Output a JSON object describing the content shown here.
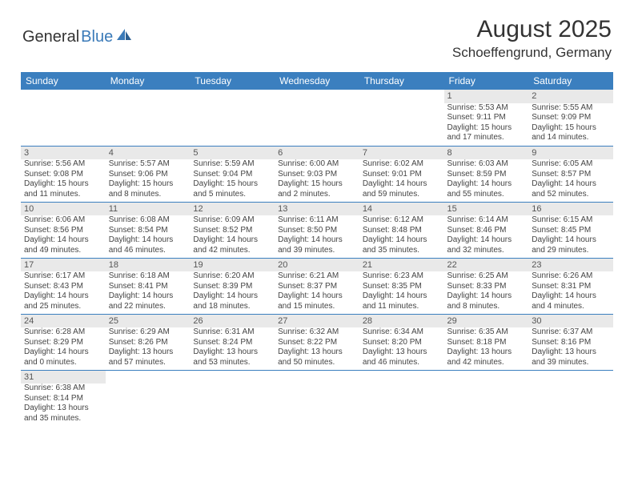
{
  "logo": {
    "part1": "General",
    "part2": "Blue"
  },
  "title": "August 2025",
  "location": "Schoeffengrund, Germany",
  "colors": {
    "header_bg": "#3b7fbf",
    "header_text": "#ffffff",
    "daynum_bg": "#e9e9e9",
    "row_border": "#3b7fbf",
    "logo_blue": "#3a7ab8"
  },
  "daysOfWeek": [
    "Sunday",
    "Monday",
    "Tuesday",
    "Wednesday",
    "Thursday",
    "Friday",
    "Saturday"
  ],
  "weeks": [
    [
      null,
      null,
      null,
      null,
      null,
      {
        "n": "1",
        "sr": "Sunrise: 5:53 AM",
        "ss": "Sunset: 9:11 PM",
        "dl": "Daylight: 15 hours and 17 minutes."
      },
      {
        "n": "2",
        "sr": "Sunrise: 5:55 AM",
        "ss": "Sunset: 9:09 PM",
        "dl": "Daylight: 15 hours and 14 minutes."
      }
    ],
    [
      {
        "n": "3",
        "sr": "Sunrise: 5:56 AM",
        "ss": "Sunset: 9:08 PM",
        "dl": "Daylight: 15 hours and 11 minutes."
      },
      {
        "n": "4",
        "sr": "Sunrise: 5:57 AM",
        "ss": "Sunset: 9:06 PM",
        "dl": "Daylight: 15 hours and 8 minutes."
      },
      {
        "n": "5",
        "sr": "Sunrise: 5:59 AM",
        "ss": "Sunset: 9:04 PM",
        "dl": "Daylight: 15 hours and 5 minutes."
      },
      {
        "n": "6",
        "sr": "Sunrise: 6:00 AM",
        "ss": "Sunset: 9:03 PM",
        "dl": "Daylight: 15 hours and 2 minutes."
      },
      {
        "n": "7",
        "sr": "Sunrise: 6:02 AM",
        "ss": "Sunset: 9:01 PM",
        "dl": "Daylight: 14 hours and 59 minutes."
      },
      {
        "n": "8",
        "sr": "Sunrise: 6:03 AM",
        "ss": "Sunset: 8:59 PM",
        "dl": "Daylight: 14 hours and 55 minutes."
      },
      {
        "n": "9",
        "sr": "Sunrise: 6:05 AM",
        "ss": "Sunset: 8:57 PM",
        "dl": "Daylight: 14 hours and 52 minutes."
      }
    ],
    [
      {
        "n": "10",
        "sr": "Sunrise: 6:06 AM",
        "ss": "Sunset: 8:56 PM",
        "dl": "Daylight: 14 hours and 49 minutes."
      },
      {
        "n": "11",
        "sr": "Sunrise: 6:08 AM",
        "ss": "Sunset: 8:54 PM",
        "dl": "Daylight: 14 hours and 46 minutes."
      },
      {
        "n": "12",
        "sr": "Sunrise: 6:09 AM",
        "ss": "Sunset: 8:52 PM",
        "dl": "Daylight: 14 hours and 42 minutes."
      },
      {
        "n": "13",
        "sr": "Sunrise: 6:11 AM",
        "ss": "Sunset: 8:50 PM",
        "dl": "Daylight: 14 hours and 39 minutes."
      },
      {
        "n": "14",
        "sr": "Sunrise: 6:12 AM",
        "ss": "Sunset: 8:48 PM",
        "dl": "Daylight: 14 hours and 35 minutes."
      },
      {
        "n": "15",
        "sr": "Sunrise: 6:14 AM",
        "ss": "Sunset: 8:46 PM",
        "dl": "Daylight: 14 hours and 32 minutes."
      },
      {
        "n": "16",
        "sr": "Sunrise: 6:15 AM",
        "ss": "Sunset: 8:45 PM",
        "dl": "Daylight: 14 hours and 29 minutes."
      }
    ],
    [
      {
        "n": "17",
        "sr": "Sunrise: 6:17 AM",
        "ss": "Sunset: 8:43 PM",
        "dl": "Daylight: 14 hours and 25 minutes."
      },
      {
        "n": "18",
        "sr": "Sunrise: 6:18 AM",
        "ss": "Sunset: 8:41 PM",
        "dl": "Daylight: 14 hours and 22 minutes."
      },
      {
        "n": "19",
        "sr": "Sunrise: 6:20 AM",
        "ss": "Sunset: 8:39 PM",
        "dl": "Daylight: 14 hours and 18 minutes."
      },
      {
        "n": "20",
        "sr": "Sunrise: 6:21 AM",
        "ss": "Sunset: 8:37 PM",
        "dl": "Daylight: 14 hours and 15 minutes."
      },
      {
        "n": "21",
        "sr": "Sunrise: 6:23 AM",
        "ss": "Sunset: 8:35 PM",
        "dl": "Daylight: 14 hours and 11 minutes."
      },
      {
        "n": "22",
        "sr": "Sunrise: 6:25 AM",
        "ss": "Sunset: 8:33 PM",
        "dl": "Daylight: 14 hours and 8 minutes."
      },
      {
        "n": "23",
        "sr": "Sunrise: 6:26 AM",
        "ss": "Sunset: 8:31 PM",
        "dl": "Daylight: 14 hours and 4 minutes."
      }
    ],
    [
      {
        "n": "24",
        "sr": "Sunrise: 6:28 AM",
        "ss": "Sunset: 8:29 PM",
        "dl": "Daylight: 14 hours and 0 minutes."
      },
      {
        "n": "25",
        "sr": "Sunrise: 6:29 AM",
        "ss": "Sunset: 8:26 PM",
        "dl": "Daylight: 13 hours and 57 minutes."
      },
      {
        "n": "26",
        "sr": "Sunrise: 6:31 AM",
        "ss": "Sunset: 8:24 PM",
        "dl": "Daylight: 13 hours and 53 minutes."
      },
      {
        "n": "27",
        "sr": "Sunrise: 6:32 AM",
        "ss": "Sunset: 8:22 PM",
        "dl": "Daylight: 13 hours and 50 minutes."
      },
      {
        "n": "28",
        "sr": "Sunrise: 6:34 AM",
        "ss": "Sunset: 8:20 PM",
        "dl": "Daylight: 13 hours and 46 minutes."
      },
      {
        "n": "29",
        "sr": "Sunrise: 6:35 AM",
        "ss": "Sunset: 8:18 PM",
        "dl": "Daylight: 13 hours and 42 minutes."
      },
      {
        "n": "30",
        "sr": "Sunrise: 6:37 AM",
        "ss": "Sunset: 8:16 PM",
        "dl": "Daylight: 13 hours and 39 minutes."
      }
    ],
    [
      {
        "n": "31",
        "sr": "Sunrise: 6:38 AM",
        "ss": "Sunset: 8:14 PM",
        "dl": "Daylight: 13 hours and 35 minutes."
      },
      null,
      null,
      null,
      null,
      null,
      null
    ]
  ]
}
